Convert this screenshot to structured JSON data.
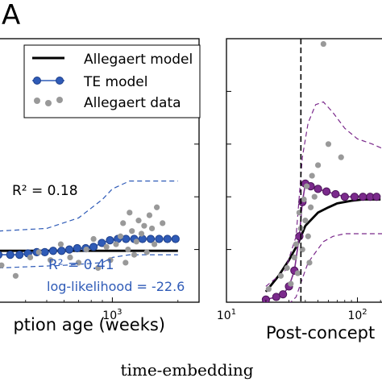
{
  "panel_letter": "A",
  "caption": "time-embedding",
  "chart_data": [
    {
      "type": "line",
      "panel": "left",
      "xlabel": "ption age (weeks)",
      "ylabel": "",
      "x_scale": "log",
      "xlim": [
        300,
        2500
      ],
      "ylim": [
        0,
        1
      ],
      "x_tick_labels": [
        "10^3"
      ],
      "legend": {
        "placement": "top",
        "entries": [
          "Allegaert model",
          "TE model",
          "Allegaert data"
        ]
      },
      "annotations": {
        "r2_black": "R² = 0.18",
        "r2_blue": "R² = 0.41",
        "loglik": "log-likelihood = -22.6"
      },
      "series": [
        {
          "name": "Allegaert model",
          "color": "#000000",
          "style": "solid",
          "x": [
            300,
            2000
          ],
          "y": [
            0.195,
            0.195
          ]
        },
        {
          "name": "TE model",
          "color": "#2f5bb7",
          "style": "line-markers",
          "x": [
            300,
            340,
            375,
            410,
            450,
            490,
            535,
            585,
            635,
            690,
            755,
            820,
            895,
            975,
            1060,
            1155,
            1260,
            1375,
            1500,
            1640,
            1790,
            1950
          ],
          "y": [
            0.18,
            0.18,
            0.18,
            0.185,
            0.19,
            0.19,
            0.195,
            0.195,
            0.2,
            0.205,
            0.205,
            0.21,
            0.225,
            0.235,
            0.24,
            0.24,
            0.24,
            0.24,
            0.24,
            0.24,
            0.24,
            0.24
          ]
        },
        {
          "name": "TE bound upper",
          "color": "#2f5bb7",
          "style": "dashed",
          "x": [
            300,
            500,
            700,
            900,
            1000,
            1200,
            1500,
            2000
          ],
          "y": [
            0.27,
            0.28,
            0.32,
            0.39,
            0.43,
            0.46,
            0.46,
            0.46
          ]
        },
        {
          "name": "TE bound lower",
          "color": "#2f5bb7",
          "style": "dashed",
          "x": [
            300,
            600,
            900,
            1000,
            1200,
            1500,
            2000
          ],
          "y": [
            0.13,
            0.14,
            0.15,
            0.17,
            0.18,
            0.18,
            0.18
          ]
        },
        {
          "name": "Allegaert data",
          "color": "#999999",
          "style": "scatter",
          "x": [
            310,
            360,
            420,
            460,
            520,
            580,
            640,
            700,
            760,
            820,
            860,
            940,
            980,
            1040,
            1090,
            1120,
            1150,
            1180,
            1200,
            1230,
            1260,
            1290,
            1320,
            1360,
            1400,
            1440,
            1480,
            1520,
            1560,
            1600,
            1700
          ],
          "y": [
            0.14,
            0.1,
            0.17,
            0.19,
            0.16,
            0.22,
            0.17,
            0.15,
            0.2,
            0.24,
            0.13,
            0.21,
            0.16,
            0.22,
            0.25,
            0.3,
            0.15,
            0.2,
            0.34,
            0.27,
            0.18,
            0.23,
            0.31,
            0.26,
            0.29,
            0.19,
            0.33,
            0.28,
            0.22,
            0.36,
            0.3
          ]
        }
      ]
    },
    {
      "type": "line",
      "panel": "right",
      "xlabel": "Post-concept",
      "ylabel": "",
      "x_scale": "log",
      "xlim": [
        10,
        170
      ],
      "ylim": [
        0,
        1
      ],
      "x_tick_labels": [
        "10^1",
        "10^2"
      ],
      "vline_x": 37,
      "series": [
        {
          "name": "black model",
          "color": "#000000",
          "style": "solid",
          "x": [
            20,
            25,
            30,
            35,
            40,
            50,
            60,
            70,
            90,
            110,
            130,
            150
          ],
          "y": [
            0.04,
            0.1,
            0.16,
            0.22,
            0.29,
            0.34,
            0.36,
            0.375,
            0.385,
            0.39,
            0.39,
            0.39
          ]
        },
        {
          "name": "purple model",
          "color": "#7b2a8c",
          "style": "line-markers",
          "x": [
            20,
            24,
            27,
            30,
            33,
            36,
            38,
            40,
            44,
            50,
            58,
            68,
            80,
            95,
            110,
            125,
            140
          ],
          "y": [
            0.01,
            0.02,
            0.03,
            0.06,
            0.12,
            0.25,
            0.38,
            0.45,
            0.44,
            0.43,
            0.42,
            0.41,
            0.4,
            0.4,
            0.4,
            0.4,
            0.4
          ]
        },
        {
          "name": "purple bound upper",
          "color": "#7b2a8c",
          "style": "dashed",
          "x": [
            20,
            28,
            34,
            38,
            42,
            48,
            55,
            65,
            80,
            100,
            130,
            160
          ],
          "y": [
            0.06,
            0.12,
            0.25,
            0.55,
            0.68,
            0.75,
            0.76,
            0.72,
            0.66,
            0.62,
            0.6,
            0.58
          ]
        },
        {
          "name": "purple bound lower",
          "color": "#7b2a8c",
          "style": "dashed",
          "x": [
            20,
            28,
            34,
            38,
            42,
            48,
            55,
            65,
            80,
            100,
            130,
            160
          ],
          "y": [
            -0.03,
            -0.02,
            0.02,
            0.09,
            0.15,
            0.19,
            0.23,
            0.25,
            0.26,
            0.26,
            0.26,
            0.26
          ]
        },
        {
          "name": "grey data",
          "color": "#999999",
          "style": "scatter",
          "x": [
            21,
            26,
            29,
            31,
            33,
            34,
            35,
            36,
            37,
            38,
            39,
            40,
            41,
            42,
            43,
            44,
            45,
            47,
            50,
            55,
            60,
            75
          ],
          "y": [
            0.05,
            0.1,
            0.13,
            0.07,
            0.17,
            0.22,
            0.11,
            0.34,
            0.28,
            0.2,
            0.39,
            0.31,
            0.44,
            0.25,
            0.15,
            0.36,
            0.48,
            0.4,
            0.52,
            0.98,
            0.6,
            0.55
          ]
        }
      ]
    }
  ]
}
